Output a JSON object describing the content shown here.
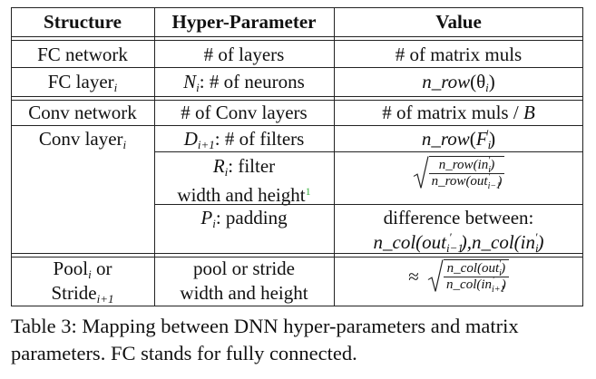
{
  "table": {
    "headers": {
      "structure": "Structure",
      "hyper_parameter": "Hyper-Parameter",
      "value": "Value"
    },
    "rows": {
      "fc_network": {
        "structure": "FC network",
        "param": "# of layers",
        "value": "# of matrix muls"
      },
      "fc_layer": {
        "structure_main": "FC layer",
        "structure_sub": "i",
        "param_var": "N",
        "param_sub": "i",
        "param_text": ": # of neurons",
        "value_func": "n_row",
        "value_arg": "θ",
        "value_sub": "i"
      },
      "conv_network": {
        "structure": "Conv network",
        "param": "# of Conv layers",
        "value_main": "# of matrix muls / ",
        "value_var": "B"
      },
      "conv_layer_filters": {
        "structure_main": "Conv layer",
        "structure_sub": "i",
        "param_var": "D",
        "param_sub": "i+1",
        "param_text": ": # of filters",
        "value_func": "n_row",
        "value_arg": "F",
        "value_sub": "i",
        "value_prime": "′"
      },
      "conv_layer_filter_size": {
        "param_var": "R",
        "param_sub": "i",
        "param_text": ": filter",
        "param_line2": "width and height",
        "footnote": "1",
        "num": "n_row(in",
        "num_sub": "i",
        "num_end": ")",
        "den": "n_row(out",
        "den_sub": "i−1",
        "den_end": ")"
      },
      "conv_layer_padding": {
        "param_var": "P",
        "param_sub": "i",
        "param_text": ": padding",
        "value_line1": "difference between:",
        "value_line2_a": "n_col(out",
        "value_line2_a_sub": "i−1",
        "value_line2_b": "),n_col(in",
        "value_line2_b_sub": "i",
        "value_line2_c": ")"
      },
      "pool": {
        "structure_line1_main": "Pool",
        "structure_line1_sub": "i",
        "structure_line1_end": " or",
        "structure_line2_main": "Stride",
        "structure_line2_sub": "i+1",
        "param_line1": "pool or stride",
        "param_line2": "width and height",
        "approx": "≈",
        "num": "n_col(out",
        "num_sub": "i",
        "num_end": ")",
        "den": "n_col(in",
        "den_sub": "i+1",
        "den_end": ")"
      }
    }
  },
  "caption": "Table 3: Mapping between DNN hyper-parameters and matrix parameters. FC stands for fully connected.",
  "colors": {
    "footnote": "#3cb043",
    "rule": "#222222"
  }
}
